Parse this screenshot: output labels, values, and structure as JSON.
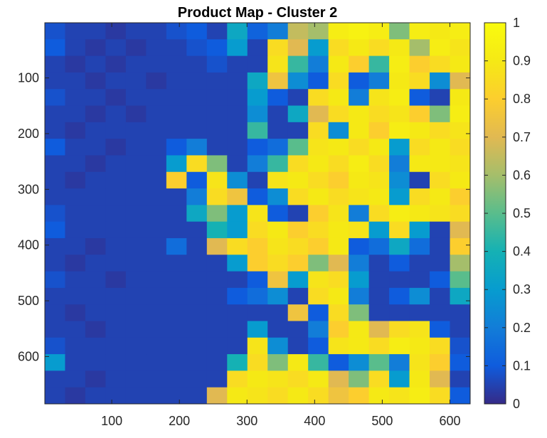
{
  "chart_data": {
    "type": "heatmap",
    "title": "Product Map - Cluster 2",
    "xlabel": "",
    "ylabel": "",
    "x_range": [
      1,
      630
    ],
    "y_range": [
      1,
      685
    ],
    "y_direction": "reversed",
    "x_ticks": [
      100,
      200,
      300,
      400,
      500,
      600
    ],
    "x_tick_labels": [
      "100",
      "200",
      "300",
      "400",
      "500",
      "600"
    ],
    "y_ticks": [
      100,
      200,
      300,
      400,
      500,
      600
    ],
    "y_tick_labels": [
      "100",
      "200",
      "300",
      "400",
      "500",
      "600"
    ],
    "colormap": "parula",
    "colorbar": {
      "range": [
        0,
        1
      ],
      "ticks": [
        0,
        0.1,
        0.2,
        0.3,
        0.4,
        0.5,
        0.6,
        0.7,
        0.8,
        0.9,
        1
      ],
      "tick_labels": [
        "0",
        "0.1",
        "0.2",
        "0.3",
        "0.4",
        "0.5",
        "0.6",
        "0.7",
        "0.8",
        "0.9",
        "1"
      ],
      "placement": "right"
    },
    "grid_columns": 21,
    "grid_rows": 23,
    "grid": [
      [
        0.08,
        0.05,
        0.05,
        0.03,
        0.05,
        0.05,
        0.08,
        0.1,
        0.05,
        0.35,
        0.12,
        0.2,
        0.65,
        0.6,
        0.92,
        0.95,
        0.92,
        0.55,
        0.92,
        0.9,
        0.92
      ],
      [
        0.1,
        0.05,
        0.03,
        0.05,
        0.03,
        0.05,
        0.05,
        0.08,
        0.1,
        0.3,
        0.05,
        0.85,
        0.7,
        0.3,
        0.85,
        0.9,
        0.85,
        0.9,
        0.6,
        0.92,
        0.88
      ],
      [
        0.05,
        0.03,
        0.05,
        0.03,
        0.05,
        0.05,
        0.05,
        0.05,
        0.08,
        0.05,
        0.05,
        0.88,
        0.45,
        0.2,
        0.9,
        0.8,
        0.45,
        0.92,
        0.8,
        0.85,
        0.9
      ],
      [
        0.05,
        0.05,
        0.03,
        0.05,
        0.05,
        0.03,
        0.05,
        0.05,
        0.05,
        0.05,
        0.35,
        0.75,
        0.25,
        0.1,
        0.85,
        0.1,
        0.2,
        0.9,
        0.85,
        0.25,
        0.7
      ],
      [
        0.08,
        0.05,
        0.05,
        0.03,
        0.05,
        0.05,
        0.05,
        0.05,
        0.05,
        0.05,
        0.3,
        0.1,
        0.05,
        0.85,
        0.9,
        0.2,
        0.88,
        0.92,
        0.1,
        0.05,
        0.9
      ],
      [
        0.05,
        0.05,
        0.03,
        0.05,
        0.03,
        0.05,
        0.05,
        0.05,
        0.05,
        0.05,
        0.25,
        0.05,
        0.35,
        0.7,
        0.85,
        0.9,
        0.85,
        0.88,
        0.8,
        0.55,
        0.92
      ],
      [
        0.05,
        0.03,
        0.05,
        0.05,
        0.05,
        0.05,
        0.05,
        0.05,
        0.05,
        0.05,
        0.45,
        0.05,
        0.05,
        0.85,
        0.25,
        0.9,
        0.8,
        0.92,
        0.9,
        0.85,
        0.88
      ],
      [
        0.1,
        0.05,
        0.05,
        0.03,
        0.05,
        0.05,
        0.1,
        0.2,
        0.05,
        0.05,
        0.1,
        0.15,
        0.5,
        0.88,
        0.9,
        0.85,
        0.9,
        0.3,
        0.85,
        0.9,
        0.85
      ],
      [
        0.05,
        0.05,
        0.03,
        0.05,
        0.05,
        0.05,
        0.3,
        0.85,
        0.55,
        0.05,
        0.2,
        0.45,
        0.85,
        0.9,
        0.85,
        0.92,
        0.85,
        0.2,
        0.9,
        0.9,
        0.88
      ],
      [
        0.05,
        0.03,
        0.05,
        0.05,
        0.05,
        0.05,
        0.8,
        0.1,
        0.88,
        0.25,
        0.05,
        0.88,
        0.9,
        0.85,
        0.8,
        0.9,
        0.88,
        0.25,
        0.05,
        0.85,
        0.9
      ],
      [
        0.05,
        0.05,
        0.05,
        0.05,
        0.05,
        0.05,
        0.05,
        0.2,
        0.85,
        0.75,
        0.1,
        0.25,
        0.85,
        0.9,
        0.85,
        0.88,
        0.9,
        0.3,
        0.85,
        0.9,
        0.8
      ],
      [
        0.08,
        0.05,
        0.05,
        0.05,
        0.05,
        0.05,
        0.05,
        0.35,
        0.55,
        0.3,
        0.88,
        0.1,
        0.05,
        0.8,
        0.88,
        0.2,
        0.85,
        0.92,
        0.9,
        0.88,
        0.85
      ],
      [
        0.1,
        0.05,
        0.05,
        0.05,
        0.05,
        0.05,
        0.05,
        0.05,
        0.4,
        0.3,
        0.85,
        0.9,
        0.8,
        0.85,
        0.9,
        0.88,
        0.3,
        0.85,
        0.3,
        0.05,
        0.7
      ],
      [
        0.05,
        0.05,
        0.03,
        0.05,
        0.05,
        0.05,
        0.15,
        0.05,
        0.7,
        0.85,
        0.8,
        0.88,
        0.85,
        0.8,
        0.9,
        0.1,
        0.15,
        0.35,
        0.15,
        0.05,
        0.8
      ],
      [
        0.05,
        0.03,
        0.05,
        0.05,
        0.05,
        0.05,
        0.05,
        0.05,
        0.05,
        0.3,
        0.8,
        0.85,
        0.8,
        0.55,
        0.7,
        0.2,
        0.05,
        0.1,
        0.05,
        0.05,
        0.6
      ],
      [
        0.08,
        0.05,
        0.05,
        0.03,
        0.05,
        0.05,
        0.05,
        0.05,
        0.05,
        0.05,
        0.1,
        0.75,
        0.3,
        0.88,
        0.85,
        0.3,
        0.05,
        0.05,
        0.05,
        0.1,
        0.5
      ],
      [
        0.05,
        0.05,
        0.05,
        0.05,
        0.05,
        0.05,
        0.05,
        0.05,
        0.05,
        0.1,
        0.15,
        0.25,
        0.05,
        0.85,
        0.9,
        0.2,
        0.05,
        0.1,
        0.25,
        0.05,
        0.35
      ],
      [
        0.05,
        0.03,
        0.05,
        0.05,
        0.05,
        0.05,
        0.05,
        0.05,
        0.05,
        0.05,
        0.05,
        0.05,
        0.75,
        0.1,
        0.85,
        0.55,
        0.05,
        0.05,
        0.05,
        0.05,
        0.05
      ],
      [
        0.05,
        0.05,
        0.03,
        0.05,
        0.05,
        0.05,
        0.05,
        0.05,
        0.05,
        0.05,
        0.3,
        0.05,
        0.05,
        0.2,
        0.8,
        0.9,
        0.7,
        0.85,
        0.88,
        0.1,
        0.05
      ],
      [
        0.08,
        0.05,
        0.05,
        0.05,
        0.05,
        0.05,
        0.05,
        0.05,
        0.05,
        0.05,
        0.88,
        0.25,
        0.05,
        0.1,
        0.88,
        0.9,
        0.85,
        0.92,
        0.9,
        0.85,
        0.08
      ],
      [
        0.3,
        0.05,
        0.05,
        0.05,
        0.05,
        0.05,
        0.05,
        0.05,
        0.05,
        0.4,
        0.85,
        0.55,
        0.9,
        0.45,
        0.1,
        0.25,
        0.5,
        0.2,
        0.88,
        0.8,
        0.1
      ],
      [
        0.05,
        0.05,
        0.03,
        0.05,
        0.05,
        0.05,
        0.05,
        0.05,
        0.05,
        0.85,
        0.9,
        0.88,
        0.85,
        0.9,
        0.7,
        0.55,
        0.85,
        0.3,
        0.9,
        0.7,
        0.05
      ],
      [
        0.05,
        0.03,
        0.05,
        0.05,
        0.05,
        0.05,
        0.05,
        0.05,
        0.7,
        0.9,
        0.88,
        0.85,
        0.9,
        0.85,
        0.75,
        0.8,
        0.9,
        0.88,
        0.92,
        0.85,
        0.1
      ]
    ]
  }
}
